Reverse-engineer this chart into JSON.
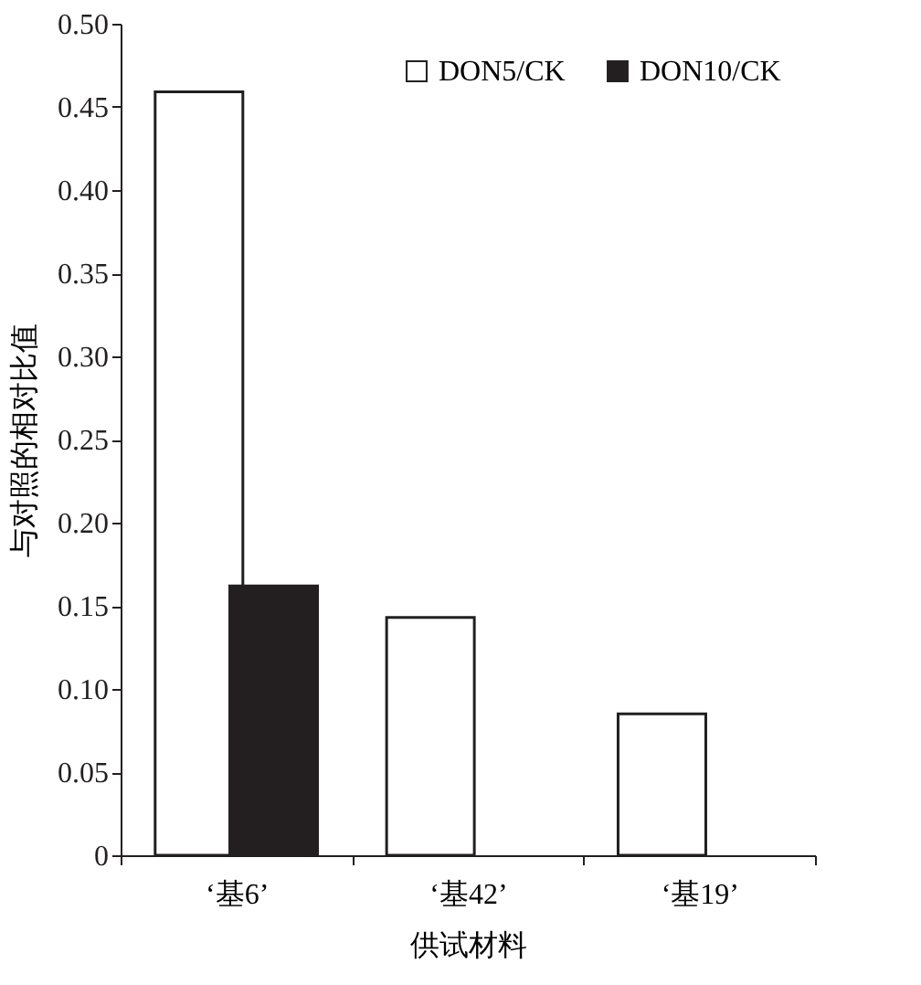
{
  "chart_data": {
    "type": "bar",
    "xlabel": "供试材料",
    "ylabel": "与对照的相对比值",
    "categories": [
      "‘基6’",
      "‘基42’",
      "‘基19’"
    ],
    "series": [
      {
        "name": "DON5/CK",
        "color": "#ffffff",
        "values": [
          0.459,
          0.143,
          0.085
        ]
      },
      {
        "name": "DON10/CK",
        "color": "#231f20",
        "values": [
          0.162,
          null,
          null
        ]
      }
    ],
    "ylim": [
      0,
      0.5
    ],
    "yticks": [
      0,
      0.05,
      {
        "value": 0.1,
        "label": "0.10"
      },
      0.15,
      {
        "value": 0.2,
        "label": "0.20"
      },
      0.25,
      {
        "value": 0.3,
        "label": "0.30"
      },
      0.35,
      {
        "value": 0.4,
        "label": "0.40"
      },
      0.45,
      {
        "value": 0.5,
        "label": "0.50"
      }
    ],
    "legend": "top right",
    "grid": false
  }
}
